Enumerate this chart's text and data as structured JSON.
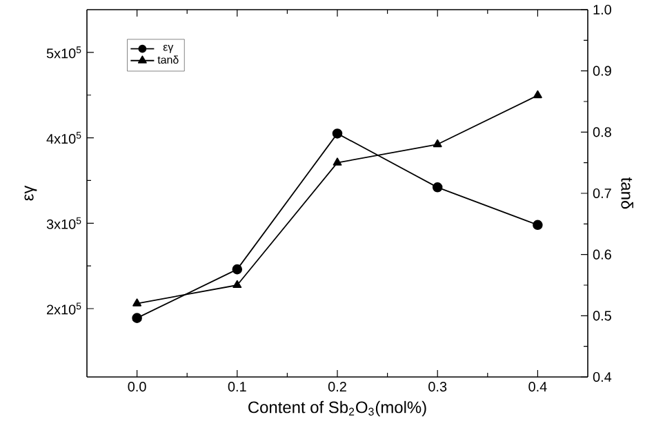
{
  "chart_data": {
    "type": "line",
    "xlabel": "Content of Sb$_{2}$O$_{3}$(mol%)",
    "ylabel": "εγ",
    "y2label": "tanδ",
    "x": [
      0.0,
      0.1,
      0.2,
      0.3,
      0.4
    ],
    "xlim": [
      -0.05,
      0.45
    ],
    "xticks": [
      {
        "value": 0.0,
        "label": "0.0"
      },
      0.1,
      0.2,
      0.3,
      0.4
    ],
    "ylim": [
      120000,
      550000
    ],
    "yticks": [
      {
        "value": 200000,
        "label": "2x10$^{5}$"
      },
      {
        "value": 300000,
        "label": "3x10$^{5}$"
      },
      {
        "value": 400000,
        "label": "4x10$^{5}$"
      },
      {
        "value": 500000,
        "label": "5x10$^{5}$"
      }
    ],
    "y2lim": [
      0.4,
      1.0
    ],
    "y2ticks": [
      0.4,
      0.5,
      0.6,
      0.7,
      0.8,
      0.9,
      {
        "value": 1.0,
        "label": "1.0"
      }
    ],
    "legend": "top left",
    "grid": false,
    "line_style": "solid",
    "series": [
      {
        "name": "εγ",
        "color": "#000000",
        "marker": "circle",
        "values": [
          189000,
          246000,
          405000,
          342000,
          298000
        ]
      },
      {
        "name": "tanδ",
        "color": "#000000",
        "marker": "triangle",
        "axis": "y2",
        "values": [
          0.52,
          0.55,
          0.75,
          0.78,
          0.86
        ]
      }
    ]
  }
}
